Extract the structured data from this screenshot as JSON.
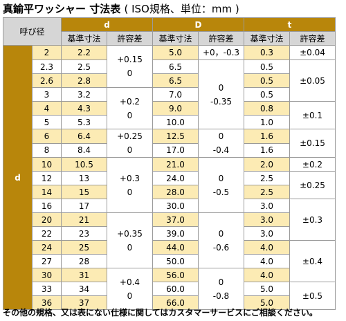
{
  "title": {
    "main": "真鍮平ワッシャー 寸法表",
    "spec": "( ISO規格、単位：mm )"
  },
  "header": {
    "nominal": "呼び径",
    "d": "d",
    "D": "D",
    "t": "t",
    "standard": "基準寸法",
    "tolerance": "許容差"
  },
  "side_label": "d",
  "rows": [
    {
      "nom": "2",
      "d": "2.2",
      "D": "5.0",
      "t": "0.3"
    },
    {
      "nom": "2.3",
      "d": "2.5",
      "D": "6.5",
      "t": "0.5"
    },
    {
      "nom": "2.6",
      "d": "2.8",
      "D": "6.5",
      "t": "0.5"
    },
    {
      "nom": "3",
      "d": "3.2",
      "D": "7.0",
      "t": "0.5"
    },
    {
      "nom": "4",
      "d": "4.3",
      "D": "9.0",
      "t": "0.8"
    },
    {
      "nom": "5",
      "d": "5.3",
      "D": "10.0",
      "t": "1.0"
    },
    {
      "nom": "6",
      "d": "6.4",
      "D": "12.5",
      "t": "1.6"
    },
    {
      "nom": "8",
      "d": "8.4",
      "D": "17.0",
      "t": "1.6"
    },
    {
      "nom": "10",
      "d": "10.5",
      "D": "21.0",
      "t": "2.0"
    },
    {
      "nom": "12",
      "d": "13",
      "D": "24.0",
      "t": "2.5"
    },
    {
      "nom": "14",
      "d": "15",
      "D": "28.0",
      "t": "2.5"
    },
    {
      "nom": "16",
      "d": "17",
      "D": "30.0",
      "t": "3.0"
    },
    {
      "nom": "20",
      "d": "21",
      "D": "37.0",
      "t": "3.0"
    },
    {
      "nom": "22",
      "d": "23",
      "D": "39.0",
      "t": "3.0"
    },
    {
      "nom": "24",
      "d": "25",
      "D": "44.0",
      "t": "4.0"
    },
    {
      "nom": "27",
      "d": "28",
      "D": "50.0",
      "t": "4.0"
    },
    {
      "nom": "30",
      "d": "31",
      "D": "56.0",
      "t": "4.0"
    },
    {
      "nom": "33",
      "d": "34",
      "D": "60.0",
      "t": "5.0"
    },
    {
      "nom": "36",
      "d": "37",
      "D": "66.0",
      "t": "5.0"
    }
  ],
  "d_tol": [
    {
      "a": "+0.15",
      "b": "0"
    },
    {
      "a": "+0.2",
      "b": "0"
    },
    {
      "a": "+0.25",
      "b": "0"
    },
    {
      "a": "+0.3",
      "b": "0"
    },
    {
      "a": "+0.35",
      "b": "0"
    },
    {
      "a": "+0.4",
      "b": "0"
    }
  ],
  "D_tol": [
    {
      "a": "+0，-0.3"
    },
    {
      "a": "0",
      "b": "-0.35"
    },
    {
      "a": "0",
      "b": "-0.4"
    },
    {
      "a": "0",
      "b": "-0.5"
    },
    {
      "a": "0",
      "b": "-0.6"
    },
    {
      "a": "0",
      "b": "-0.8"
    }
  ],
  "t_tol": [
    "±0.04",
    "±0.05",
    "±0.1",
    "±0.15",
    "±0.2",
    "±0.25",
    "±0.3",
    "±0.4",
    "±0.5"
  ],
  "footnote": "その他の規格、又は表にない仕様に関してはカスタマーサービスにご相談ください。",
  "colors": {
    "header_gold": "#b8860b",
    "header_grey": "#d6d6d6",
    "cream_row": "#fcebb4"
  }
}
